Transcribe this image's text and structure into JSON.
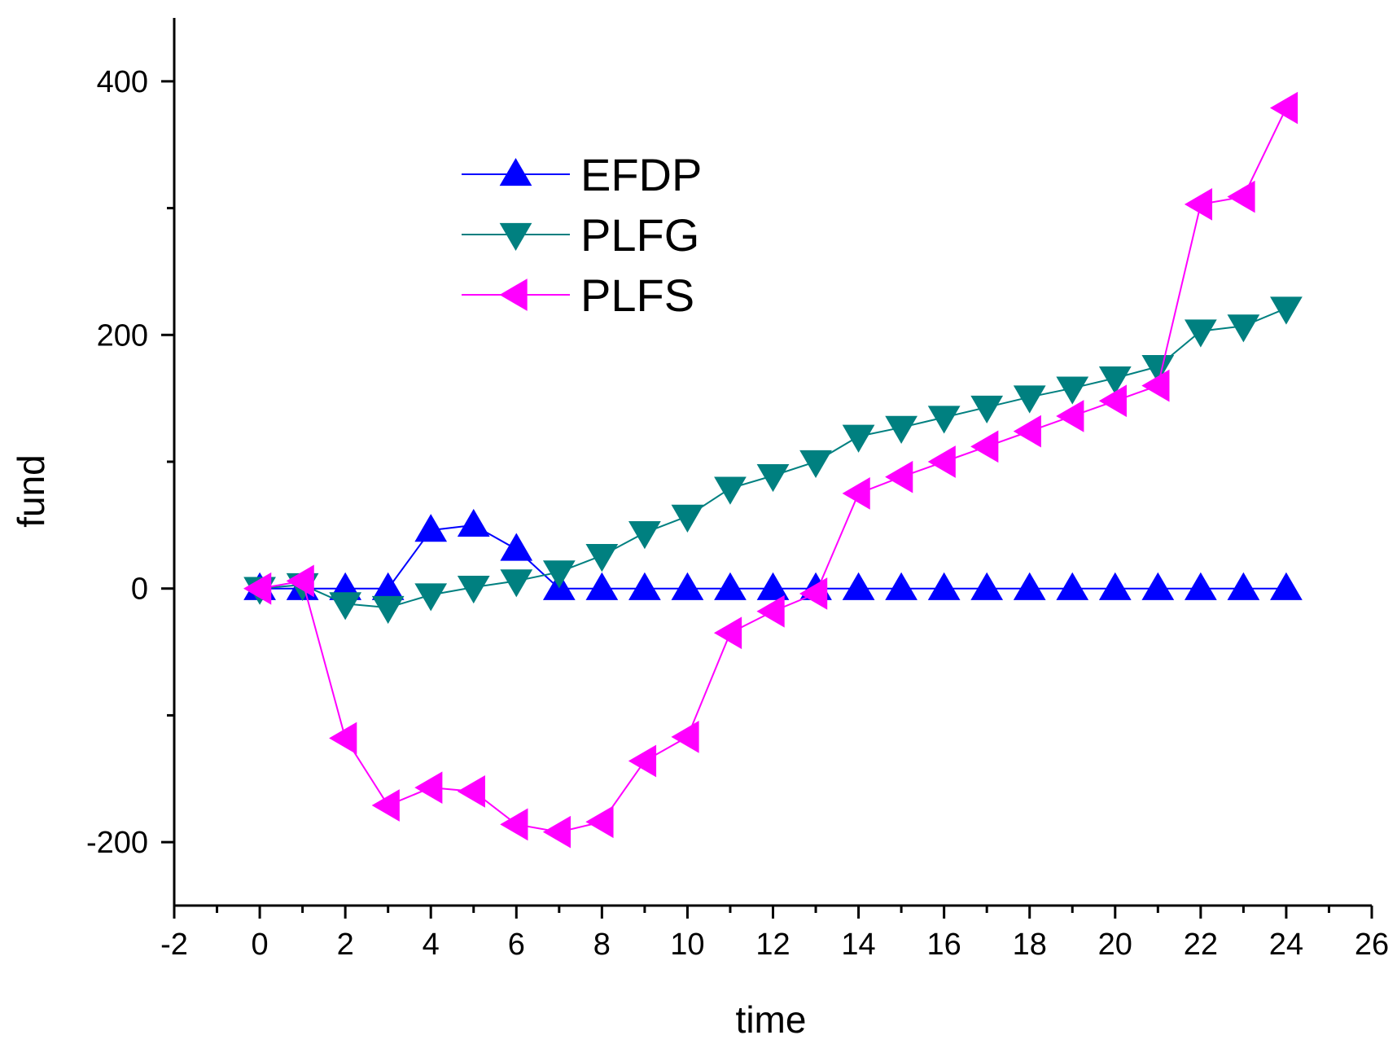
{
  "chart_data": {
    "type": "line",
    "title": "",
    "xlabel": "time",
    "ylabel": "fund",
    "xlim": [
      -2,
      26
    ],
    "ylim": [
      -250,
      450
    ],
    "x_major_ticks": [
      -2,
      0,
      2,
      4,
      6,
      8,
      10,
      12,
      14,
      16,
      18,
      20,
      22,
      24,
      26
    ],
    "x_tick_labels": [
      "-2",
      "0",
      "2",
      "4",
      "6",
      "8",
      "10",
      "12",
      "14",
      "16",
      "18",
      "20",
      "22",
      "24",
      "26"
    ],
    "y_major_ticks": [
      -200,
      -100,
      0,
      100,
      200,
      300,
      400
    ],
    "y_tick_labels": [
      "-200",
      "",
      "0",
      "",
      "200",
      "",
      "400"
    ],
    "legend_position": "upper-left",
    "x": [
      0,
      1,
      2,
      3,
      4,
      5,
      6,
      7,
      8,
      9,
      10,
      11,
      12,
      13,
      14,
      15,
      16,
      17,
      18,
      19,
      20,
      21,
      22,
      23,
      24
    ],
    "series": [
      {
        "name": "EFDP",
        "color": "#0000FF",
        "marker": "triangle-up",
        "values": [
          0,
          0,
          0,
          0,
          46,
          50,
          31,
          0,
          0,
          0,
          0,
          0,
          0,
          0,
          0,
          0,
          0,
          0,
          0,
          0,
          0,
          0,
          0,
          0,
          0
        ]
      },
      {
        "name": "PLFG",
        "color": "#008080",
        "marker": "triangle-down",
        "values": [
          0,
          3,
          -12,
          -15,
          -5,
          1,
          6,
          13,
          26,
          44,
          57,
          79,
          89,
          100,
          120,
          127,
          135,
          143,
          151,
          158,
          166,
          175,
          203,
          207,
          221
        ]
      },
      {
        "name": "PLFS",
        "color": "#FF00FF",
        "marker": "triangle-left",
        "values": [
          0,
          6,
          -118,
          -171,
          -157,
          -160,
          -186,
          -192,
          -184,
          -136,
          -117,
          -35,
          -18,
          -4,
          75,
          88,
          100,
          112,
          124,
          136,
          148,
          160,
          303,
          309,
          379
        ]
      }
    ]
  }
}
